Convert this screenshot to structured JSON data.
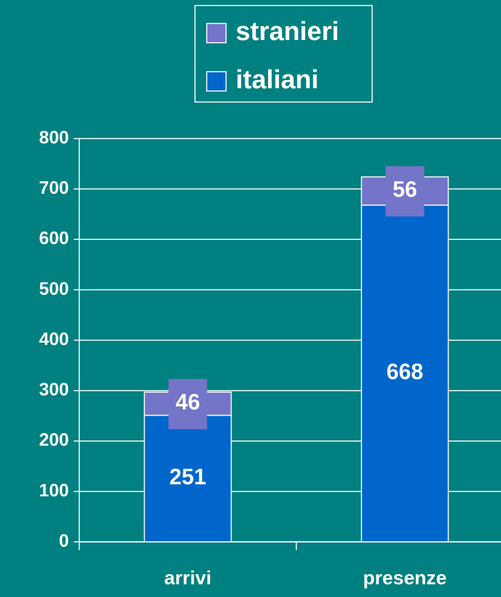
{
  "chart_data": {
    "type": "stacked_bar",
    "categories": [
      "arrivi",
      "presenze"
    ],
    "series": [
      {
        "name": "italiani",
        "color": "#0066cc",
        "values": [
          251,
          668
        ]
      },
      {
        "name": "stranieri",
        "color": "#7474c8",
        "values": [
          46,
          56
        ]
      }
    ],
    "ylim": [
      0,
      800
    ],
    "yticks": [
      0,
      100,
      200,
      300,
      400,
      500,
      600,
      700,
      800
    ],
    "grid": true,
    "legend": "top",
    "background": "#008080"
  }
}
